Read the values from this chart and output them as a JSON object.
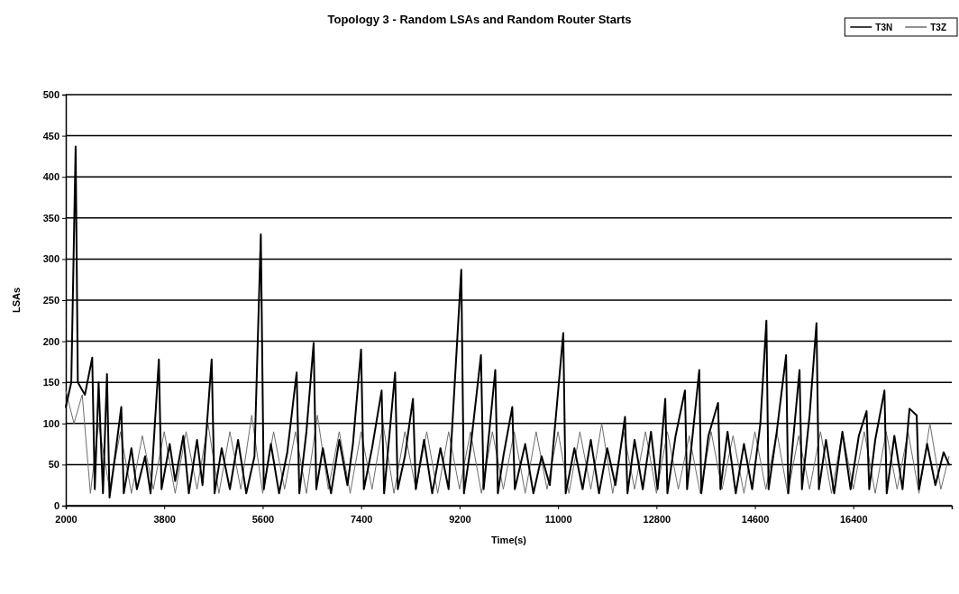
{
  "chart_data": {
    "type": "line",
    "title": "Topology 3 - Random LSAs and Random Router Starts",
    "xlabel": "Time(s)",
    "ylabel": "LSAs",
    "xlim": [
      2000,
      18200
    ],
    "xticks": [
      2000,
      3800,
      5600,
      7400,
      9200,
      11000,
      12800,
      14600,
      16400
    ],
    "ylim": [
      0,
      500
    ],
    "yticks": [
      0,
      50,
      100,
      150,
      200,
      250,
      300,
      350,
      400,
      450,
      500
    ],
    "grid": "y",
    "legend": "top right",
    "line_style": "solid",
    "marker": "none",
    "series": [
      {
        "name": "T3N",
        "color": "#000000",
        "x": [
          2000,
          2100,
          2180,
          2220,
          2350,
          2483,
          2530,
          2600,
          2680,
          2753,
          2800,
          2900,
          3014,
          3060,
          3200,
          3300,
          3450,
          3550,
          3702,
          3750,
          3900,
          4000,
          4150,
          4250,
          4400,
          4500,
          4667,
          4720,
          4850,
          5000,
          5150,
          5300,
          5450,
          5566,
          5620,
          5750,
          5900,
          6050,
          6221,
          6270,
          6400,
          6532,
          6580,
          6700,
          6850,
          7000,
          7150,
          7250,
          7399,
          7450,
          7600,
          7775,
          7820,
          8021,
          8070,
          8200,
          8348,
          8400,
          8550,
          8700,
          8850,
          9000,
          9231,
          9280,
          9400,
          9591,
          9640,
          9853,
          9900,
          10000,
          10164,
          10210,
          10400,
          10550,
          10700,
          10850,
          11096,
          11140,
          11300,
          11450,
          11600,
          11750,
          11900,
          12050,
          12225,
          12270,
          12400,
          12550,
          12700,
          12820,
          12961,
          13000,
          13150,
          13321,
          13360,
          13583,
          13620,
          13750,
          13926,
          13970,
          14100,
          14250,
          14400,
          14550,
          14700,
          14810,
          14850,
          15000,
          15170,
          15210,
          15416,
          15460,
          15600,
          15726,
          15770,
          15900,
          16050,
          16200,
          16350,
          16500,
          16642,
          16690,
          16800,
          16969,
          17010,
          17150,
          17300,
          17427,
          17558,
          17600,
          17750,
          17900,
          18050,
          18150
        ],
        "values": [
          120,
          150,
          437,
          150,
          135,
          180,
          20,
          150,
          15,
          160,
          10,
          60,
          120,
          15,
          70,
          20,
          60,
          15,
          178,
          20,
          75,
          30,
          85,
          15,
          80,
          25,
          178,
          15,
          70,
          20,
          80,
          15,
          60,
          330,
          20,
          75,
          15,
          65,
          162,
          15,
          90,
          198,
          20,
          70,
          15,
          80,
          25,
          75,
          190,
          20,
          70,
          140,
          15,
          162,
          20,
          60,
          130,
          20,
          80,
          15,
          70,
          20,
          287,
          15,
          70,
          183,
          20,
          165,
          15,
          60,
          120,
          20,
          75,
          15,
          60,
          25,
          210,
          15,
          70,
          20,
          80,
          15,
          70,
          25,
          108,
          15,
          80,
          20,
          90,
          20,
          130,
          15,
          85,
          140,
          20,
          165,
          15,
          85,
          125,
          20,
          90,
          15,
          75,
          20,
          100,
          225,
          20,
          90,
          183,
          15,
          165,
          20,
          110,
          222,
          20,
          80,
          15,
          90,
          20,
          85,
          115,
          20,
          80,
          140,
          15,
          85,
          20,
          118,
          110,
          20,
          75,
          25,
          65,
          50
        ]
      },
      {
        "name": "T3Z",
        "color": "#6e6e6e",
        "x": [
          2000,
          2150,
          2300,
          2450,
          2600,
          2800,
          3000,
          3200,
          3400,
          3600,
          3800,
          4000,
          4200,
          4400,
          4600,
          4800,
          5000,
          5200,
          5400,
          5600,
          5800,
          6000,
          6200,
          6400,
          6600,
          6800,
          7000,
          7200,
          7400,
          7600,
          7800,
          8000,
          8200,
          8400,
          8600,
          8800,
          9000,
          9200,
          9400,
          9600,
          9800,
          10000,
          10200,
          10400,
          10600,
          10800,
          11000,
          11200,
          11400,
          11600,
          11800,
          12000,
          12200,
          12400,
          12600,
          12800,
          13000,
          13200,
          13400,
          13600,
          13800,
          14000,
          14200,
          14400,
          14600,
          14800,
          15000,
          15200,
          15400,
          15600,
          15800,
          16000,
          16200,
          16400,
          16600,
          16800,
          17000,
          17200,
          17400,
          17600,
          17800,
          18000,
          18150
        ],
        "values": [
          140,
          100,
          135,
          15,
          100,
          20,
          90,
          15,
          85,
          20,
          90,
          15,
          90,
          20,
          100,
          15,
          90,
          20,
          110,
          15,
          90,
          20,
          90,
          15,
          110,
          20,
          90,
          15,
          90,
          20,
          100,
          15,
          90,
          20,
          90,
          15,
          90,
          20,
          90,
          15,
          90,
          20,
          90,
          15,
          90,
          20,
          90,
          15,
          90,
          20,
          100,
          15,
          90,
          20,
          90,
          15,
          90,
          20,
          85,
          15,
          90,
          20,
          85,
          15,
          90,
          20,
          90,
          15,
          85,
          20,
          90,
          15,
          90,
          20,
          90,
          15,
          90,
          20,
          90,
          15,
          100,
          20,
          60
        ]
      }
    ]
  }
}
